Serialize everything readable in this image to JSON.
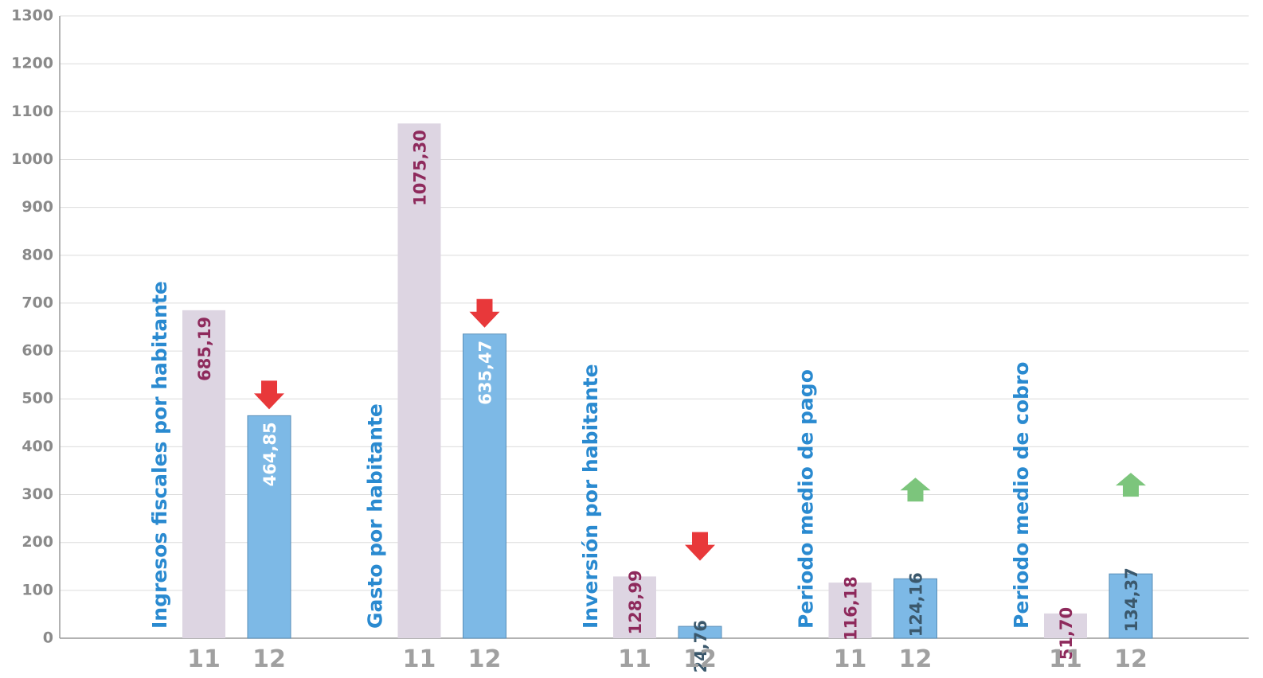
{
  "chart_data": {
    "type": "bar",
    "categories": [
      "Ingresos fiscales por habitante",
      "Gasto por habitante",
      "Inversión por habitante",
      "Periodo medio de pago",
      "Periodo medio de cobro"
    ],
    "series": [
      {
        "name": "11",
        "color": "#ddd5e2",
        "values": [
          685.19,
          1075.3,
          128.99,
          116.18,
          51.7
        ],
        "value_labels": [
          "685,19",
          "1075,30",
          "128,99",
          "116,18",
          "51,70"
        ]
      },
      {
        "name": "12",
        "color": "#7db9e6",
        "values": [
          464.85,
          635.47,
          24.76,
          124.16,
          134.37
        ],
        "value_labels": [
          "464,85",
          "635,47",
          "24,76",
          "124,16",
          "134,37"
        ]
      }
    ],
    "trend": [
      "down",
      "down",
      "down",
      "up",
      "up"
    ],
    "trend_colors": {
      "down": "#e8383a",
      "up": "#7cc57c"
    },
    "ylim": [
      0,
      1300
    ],
    "yticks": [
      0,
      100,
      200,
      300,
      400,
      500,
      600,
      700,
      800,
      900,
      1000,
      1100,
      1200,
      1300
    ],
    "grid": true
  }
}
